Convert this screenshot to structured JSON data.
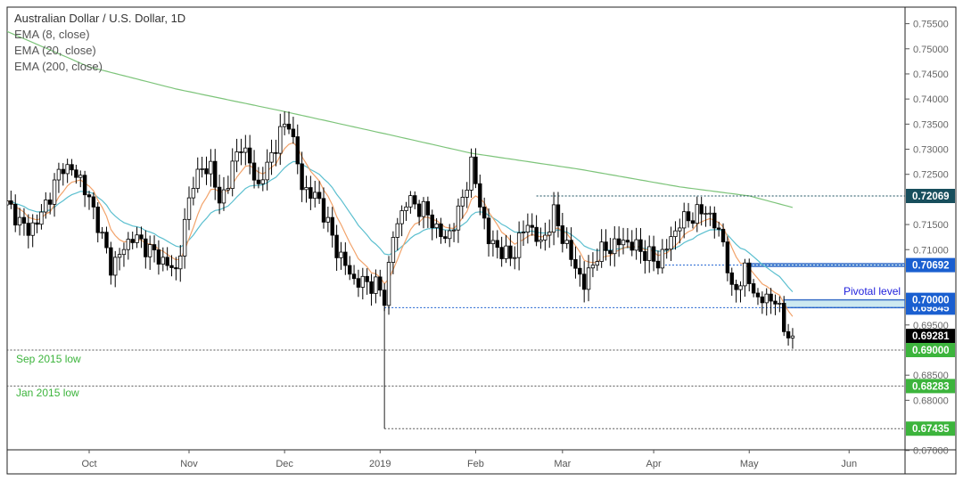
{
  "chart_data": {
    "type": "candlestick",
    "title": "Australian Dollar / U.S. Dollar, 1D",
    "indicators": [
      "EMA (8, close)",
      "EMA (20, close)",
      "EMA (200, close)"
    ],
    "colors": {
      "ema8": "#f2a36b",
      "ema20": "#5bbfcf",
      "ema200": "#7dc47a",
      "candle_up": "#ffffff",
      "candle_down": "#000000"
    },
    "x_axis": {
      "unit": "trading day index (0 = 1 Oct 2018)",
      "range": [
        -19,
        175
      ],
      "ticks": [
        {
          "t": 0,
          "label": "Oct"
        },
        {
          "t": 23,
          "label": "Nov"
        },
        {
          "t": 45,
          "label": "Dec"
        },
        {
          "t": 67,
          "label": "2019"
        },
        {
          "t": 89,
          "label": "Feb"
        },
        {
          "t": 109,
          "label": "Mar"
        },
        {
          "t": 130,
          "label": "Apr"
        },
        {
          "t": 152,
          "label": "May"
        },
        {
          "t": 175,
          "label": "Jun"
        }
      ]
    },
    "y_axis": {
      "range": [
        0.6685,
        0.7575
      ],
      "ticks": [
        "0.75500",
        "0.75000",
        "0.74500",
        "0.74000",
        "0.73500",
        "0.73000",
        "0.72500",
        "0.71500",
        "0.71000",
        "0.69500",
        "0.68500",
        "0.68000",
        "0.67000"
      ]
    },
    "close_keypoints": [
      [
        -19,
        0.7189
      ],
      [
        -14,
        0.7136
      ],
      [
        -11,
        0.717
      ],
      [
        -6,
        0.7269
      ],
      [
        -2,
        0.7242
      ],
      [
        2,
        0.7154
      ],
      [
        5,
        0.7065
      ],
      [
        10,
        0.7127
      ],
      [
        15,
        0.7092
      ],
      [
        20,
        0.7056
      ],
      [
        24,
        0.7242
      ],
      [
        28,
        0.7269
      ],
      [
        30,
        0.7189
      ],
      [
        35,
        0.7313
      ],
      [
        39,
        0.7225
      ],
      [
        44,
        0.7331
      ],
      [
        46,
        0.7358
      ],
      [
        49,
        0.7225
      ],
      [
        53,
        0.7198
      ],
      [
        57,
        0.71
      ],
      [
        61,
        0.7038
      ],
      [
        66,
        0.703
      ],
      [
        68,
        0.7003
      ],
      [
        70,
        0.7127
      ],
      [
        73,
        0.7198
      ],
      [
        77,
        0.718
      ],
      [
        82,
        0.7118
      ],
      [
        85,
        0.7171
      ],
      [
        88,
        0.7269
      ],
      [
        92,
        0.7118
      ],
      [
        97,
        0.7083
      ],
      [
        101,
        0.7154
      ],
      [
        104,
        0.7109
      ],
      [
        107,
        0.7171
      ],
      [
        111,
        0.7083
      ],
      [
        114,
        0.703
      ],
      [
        117,
        0.7092
      ],
      [
        123,
        0.7118
      ],
      [
        127,
        0.71
      ],
      [
        131,
        0.7074
      ],
      [
        136,
        0.7154
      ],
      [
        142,
        0.718
      ],
      [
        146,
        0.7118
      ],
      [
        148,
        0.7012
      ],
      [
        151,
        0.7056
      ],
      [
        154,
        0.7
      ],
      [
        158,
        0.7003
      ],
      [
        160,
        0.6944
      ],
      [
        162,
        0.6928
      ]
    ],
    "ema200_keypoints": [
      [
        -19,
        0.7535
      ],
      [
        0,
        0.7464
      ],
      [
        20,
        0.742
      ],
      [
        45,
        0.7375
      ],
      [
        68,
        0.7331
      ],
      [
        88,
        0.7292
      ],
      [
        113,
        0.726
      ],
      [
        136,
        0.7225
      ],
      [
        152,
        0.7207
      ],
      [
        162,
        0.7184
      ]
    ],
    "levels": [
      {
        "value": 0.72069,
        "label": "0.72069",
        "color": "#174e5c",
        "from_t": 103
      },
      {
        "value": 0.70692,
        "label": "0.70692",
        "color": "#1a5fd0",
        "from_t": 131
      },
      {
        "value": 0.7,
        "label": "0.70000",
        "color": "#1a5fd0",
        "from_t": 160
      },
      {
        "value": 0.69845,
        "label": "0.69845",
        "color": "#1a5fd0",
        "from_t": 68
      },
      {
        "value": 0.69281,
        "label": "0.69281",
        "color": "#000000",
        "from_t": 162
      },
      {
        "value": 0.69,
        "label": "0.69000",
        "color": "#3cb43c",
        "from_t": -19
      },
      {
        "value": 0.68283,
        "label": "0.68283",
        "color": "#3cb43c",
        "from_t": -19
      },
      {
        "value": 0.67435,
        "label": "0.67435",
        "color": "#3cb43c",
        "from_t": 68
      }
    ],
    "zones": [
      {
        "from": 0.70692,
        "to": 0.7072,
        "from_t": 151
      },
      {
        "from": 0.69845,
        "to": 0.7,
        "from_t": 160
      }
    ],
    "annotations": [
      {
        "text": "Pivotal level",
        "color": "#2222dd"
      },
      {
        "text": "Sep 2015 low",
        "color": "#3cb43c"
      },
      {
        "text": "Jan 2015 low",
        "color": "#3cb43c"
      }
    ]
  }
}
